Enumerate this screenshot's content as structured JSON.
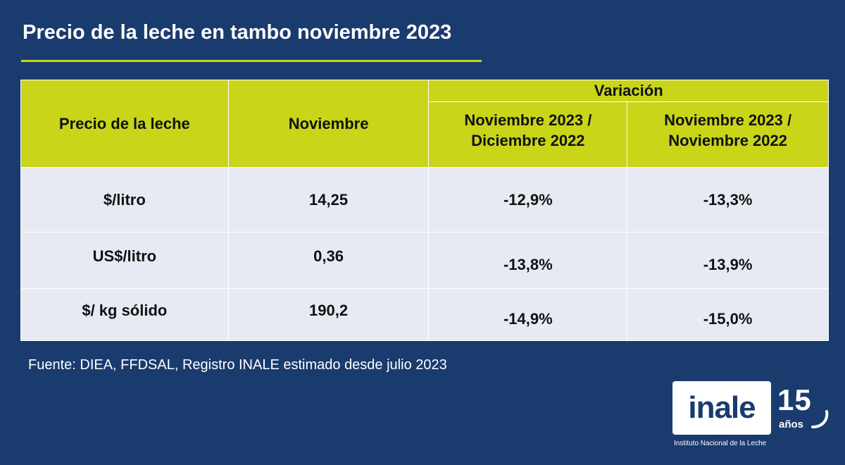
{
  "title": "Precio de la leche en tambo noviembre 2023",
  "colors": {
    "background": "#1a3b6e",
    "accent": "#c8d518",
    "row_bg": "#e8eaf3"
  },
  "table": {
    "headers": {
      "col1": "Precio de la leche",
      "col2": "Noviembre",
      "group": "Variación",
      "col3_line1": "Noviembre 2023 /",
      "col3_line2": "Diciembre 2022",
      "col4_line1": "Noviembre 2023 /",
      "col4_line2": "Noviembre 2022"
    },
    "rows": [
      {
        "unit": "$/litro",
        "noviembre": "14,25",
        "var_dic": "-12,9%",
        "var_nov": "-13,3%"
      },
      {
        "unit": "US$/litro",
        "noviembre": "0,36",
        "var_dic": "-13,8%",
        "var_nov": "-13,9%"
      },
      {
        "unit": "$/ kg sólido",
        "noviembre": "190,2",
        "var_dic": "-14,9%",
        "var_nov": "-15,0%"
      }
    ]
  },
  "source": "Fuente: DIEA, FFDSAL, Registro INALE estimado desde julio 2023",
  "logo": {
    "word": "inale",
    "number": "15",
    "years": "años",
    "subtitle": "Instituto Nacional de la Leche"
  }
}
